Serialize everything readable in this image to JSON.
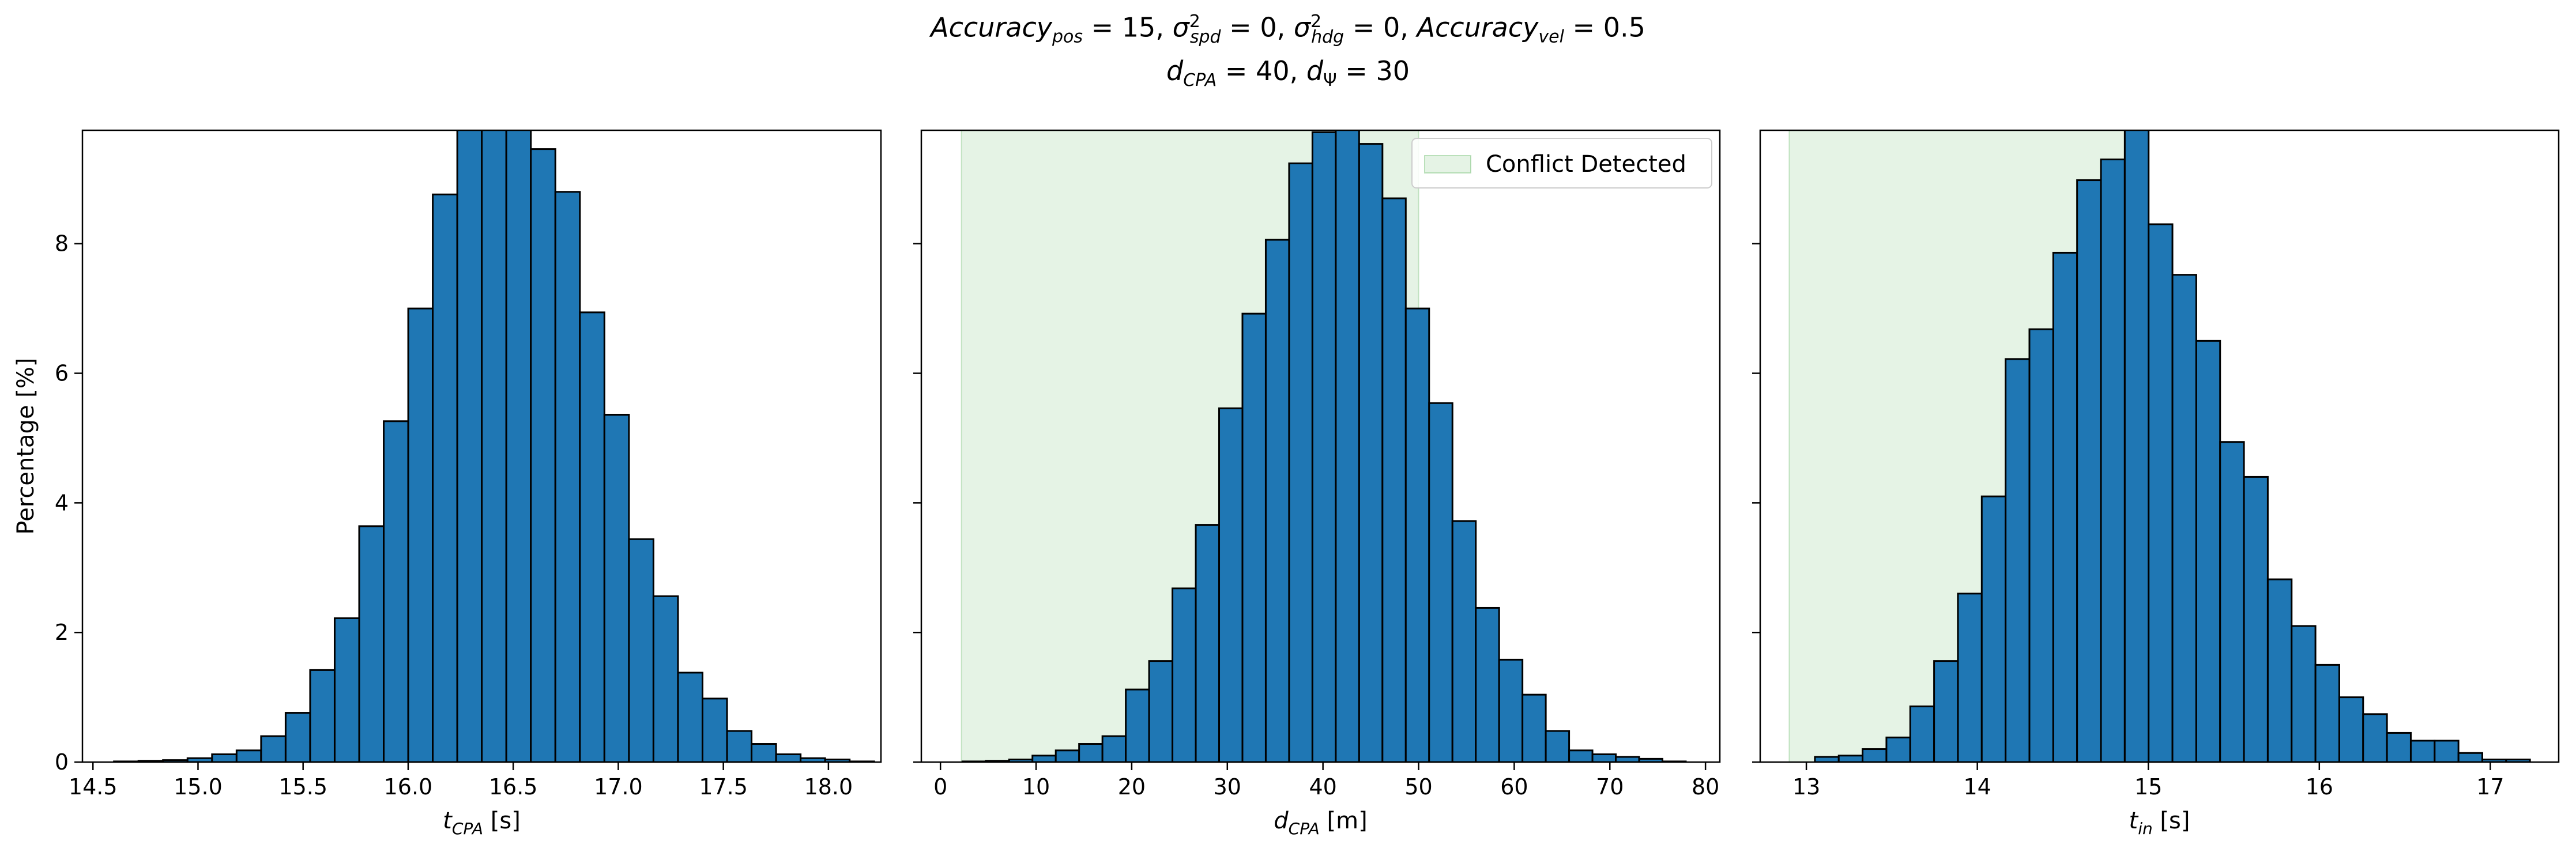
{
  "figure": {
    "title_line1": "Accuracy_pos = 15, σ²_spd = 0, σ²_hdg = 0, Accuracy_vel = 0.5",
    "title_line2": "d_CPA = 40, d_Ψ = 30",
    "bar_color": "#1f77b4",
    "edge_color": "#000000",
    "conflict_color": "#2ca02c"
  },
  "chart_data": [
    {
      "type": "bar",
      "xlabel": "t_CPA [s]",
      "ylabel": "Percentage [%]",
      "xlim": [
        14.45,
        18.25
      ],
      "ylim": [
        0,
        9.75
      ],
      "xticks": [
        14.5,
        15.0,
        15.5,
        16.0,
        16.5,
        17.0,
        17.5,
        18.0
      ],
      "xtick_labels": [
        "14.5",
        "15.0",
        "15.5",
        "16.0",
        "16.5",
        "17.0",
        "17.5",
        "18.0"
      ],
      "yticks": [
        0,
        2,
        4,
        6,
        8
      ],
      "ytick_labels": [
        "0",
        "2",
        "4",
        "6",
        "8"
      ],
      "bin_start": 14.6,
      "bin_width": 0.1167,
      "values": [
        0.01,
        0.02,
        0.03,
        0.06,
        0.12,
        0.18,
        0.4,
        0.76,
        1.42,
        2.22,
        3.64,
        5.26,
        7.0,
        8.76,
        10.0,
        10.0,
        9.9,
        9.46,
        8.8,
        6.94,
        5.36,
        3.44,
        2.56,
        1.38,
        0.98,
        0.48,
        0.28,
        0.12,
        0.06,
        0.04,
        0.01
      ],
      "conflict_region": null
    },
    {
      "type": "bar",
      "xlabel": "d_CPA [m]",
      "ylabel": "",
      "xlim": [
        -2.0,
        81.5
      ],
      "ylim": [
        0,
        9.75
      ],
      "xticks": [
        0,
        10,
        20,
        30,
        40,
        50,
        60,
        70,
        80
      ],
      "xtick_labels": [
        "0",
        "10",
        "20",
        "30",
        "40",
        "50",
        "60",
        "70",
        "80"
      ],
      "yticks": [
        0,
        2,
        4,
        6,
        8
      ],
      "ytick_labels": [
        "",
        "",
        "",
        "",
        ""
      ],
      "bin_start": 2.3,
      "bin_width": 2.44,
      "values": [
        0.01,
        0.02,
        0.04,
        0.1,
        0.18,
        0.28,
        0.4,
        1.12,
        1.56,
        2.68,
        3.66,
        5.46,
        6.92,
        8.06,
        9.24,
        9.72,
        9.76,
        9.54,
        8.7,
        7.0,
        5.54,
        3.72,
        2.38,
        1.58,
        1.04,
        0.48,
        0.18,
        0.12,
        0.08,
        0.05,
        0.01
      ],
      "conflict_region": [
        2.2,
        50.0
      ],
      "legend": "Conflict Detected",
      "legend_position": "upper right"
    },
    {
      "type": "bar",
      "xlabel": "t_in [s]",
      "ylabel": "",
      "xlim": [
        12.73,
        17.4
      ],
      "ylim": [
        0,
        9.75
      ],
      "xticks": [
        13,
        14,
        15,
        16,
        17
      ],
      "xtick_labels": [
        "13",
        "14",
        "15",
        "16",
        "17"
      ],
      "yticks": [
        0,
        2,
        4,
        6,
        8
      ],
      "ytick_labels": [
        "",
        "",
        "",
        "",
        ""
      ],
      "bin_start": 13.05,
      "bin_width": 0.1394,
      "values": [
        0.08,
        0.1,
        0.2,
        0.38,
        0.86,
        1.56,
        2.6,
        4.1,
        6.22,
        6.68,
        7.86,
        8.98,
        9.3,
        10.0,
        8.3,
        7.52,
        6.5,
        4.94,
        4.4,
        2.82,
        2.1,
        1.5,
        1.0,
        0.74,
        0.45,
        0.33,
        0.33,
        0.14,
        0.04,
        0.04
      ],
      "conflict_region": [
        12.9,
        14.9
      ]
    }
  ]
}
